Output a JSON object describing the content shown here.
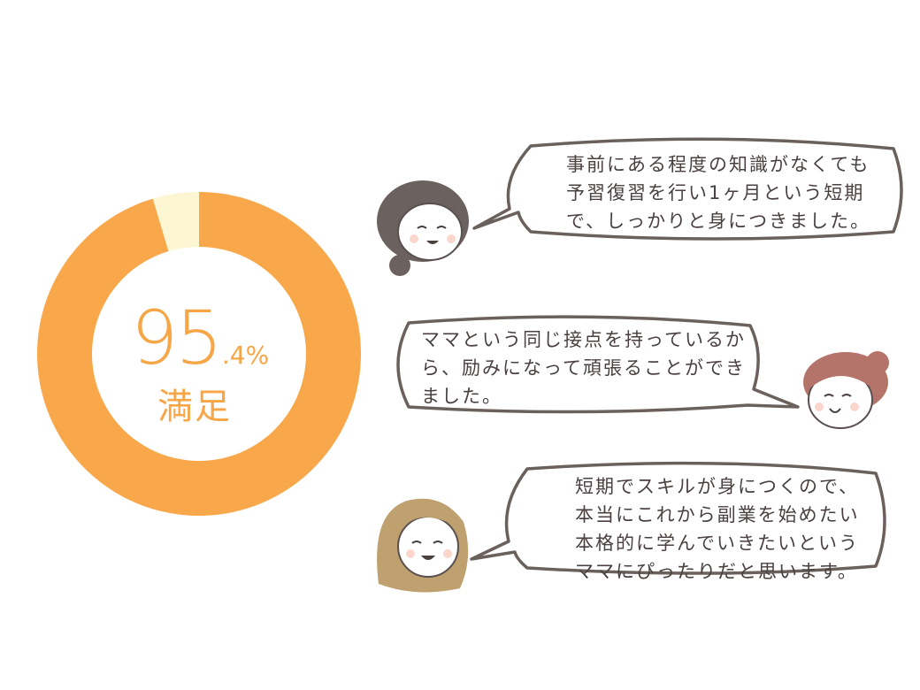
{
  "chart_data": {
    "type": "pie",
    "donut": true,
    "categories": [
      "満足",
      ""
    ],
    "values": [
      95.4,
      4.6
    ],
    "colors": [
      "#f8a84a",
      "#fdf6d2"
    ],
    "center_value": "95",
    "center_decimal": ".4%",
    "center_label": "満足"
  },
  "testimonials": [
    {
      "text": "事前にある程度の知識がなくても\n予習復習を行い1ヶ月という短期\nで、しっかりと身につきました。"
    },
    {
      "text": "ママという同じ接点を持っているか\nら、励みになって頑張ることができ\nました。"
    },
    {
      "text": "短期でスキルが身につくので、\n本当にこれから副業を始めたい\n本格的に学んでいきたいという\nママにぴったりだと思います。"
    }
  ],
  "colors": {
    "accent": "#f6a646",
    "bubble_stroke": "#6a605c",
    "text": "#4a4040"
  },
  "icons": [
    "woman-bun-icon",
    "woman-topknot-icon",
    "woman-long-hair-icon"
  ]
}
